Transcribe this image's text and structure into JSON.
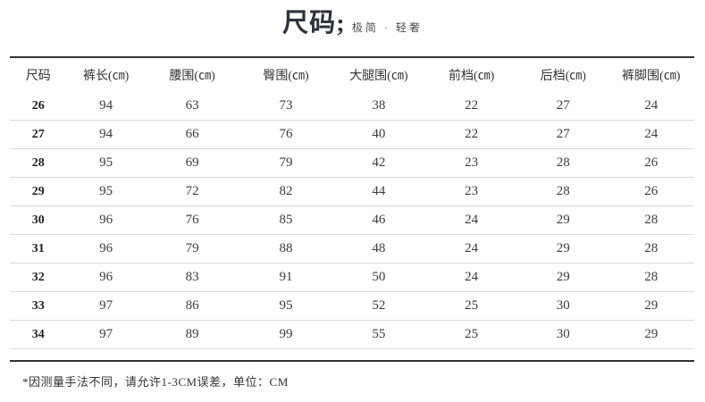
{
  "header": {
    "title": "尺码;",
    "subtitle": "极简 · 轻奢"
  },
  "chart_data": {
    "type": "table",
    "title": "尺码",
    "subtitle": "极简 · 轻奢",
    "columns": [
      "尺码",
      "裤长(㎝)",
      "腰围(㎝)",
      "臀围(㎝)",
      "大腿围(㎝)",
      "前档(㎝)",
      "后档(㎝)",
      "裤脚围(㎝)"
    ],
    "rows": [
      [
        "26",
        "94",
        "63",
        "73",
        "38",
        "22",
        "27",
        "24"
      ],
      [
        "27",
        "94",
        "66",
        "76",
        "40",
        "22",
        "27",
        "24"
      ],
      [
        "28",
        "95",
        "69",
        "79",
        "42",
        "23",
        "28",
        "26"
      ],
      [
        "29",
        "95",
        "72",
        "82",
        "44",
        "23",
        "28",
        "26"
      ],
      [
        "30",
        "96",
        "76",
        "85",
        "46",
        "24",
        "29",
        "28"
      ],
      [
        "31",
        "96",
        "79",
        "88",
        "48",
        "24",
        "29",
        "28"
      ],
      [
        "32",
        "96",
        "83",
        "91",
        "50",
        "24",
        "29",
        "28"
      ],
      [
        "33",
        "97",
        "86",
        "95",
        "52",
        "25",
        "30",
        "29"
      ],
      [
        "34",
        "97",
        "89",
        "99",
        "55",
        "25",
        "30",
        "29"
      ]
    ],
    "note": "*因测量手法不同，请允许1-3CM误差，单位：CM"
  },
  "footer": {
    "note": "*因测量手法不同，请允许1-3CM误差，单位：CM"
  },
  "colors": {
    "background": "#ffffff",
    "text": "#333333",
    "rule_dark": "#343434",
    "rule_light": "#d9d9d9"
  }
}
